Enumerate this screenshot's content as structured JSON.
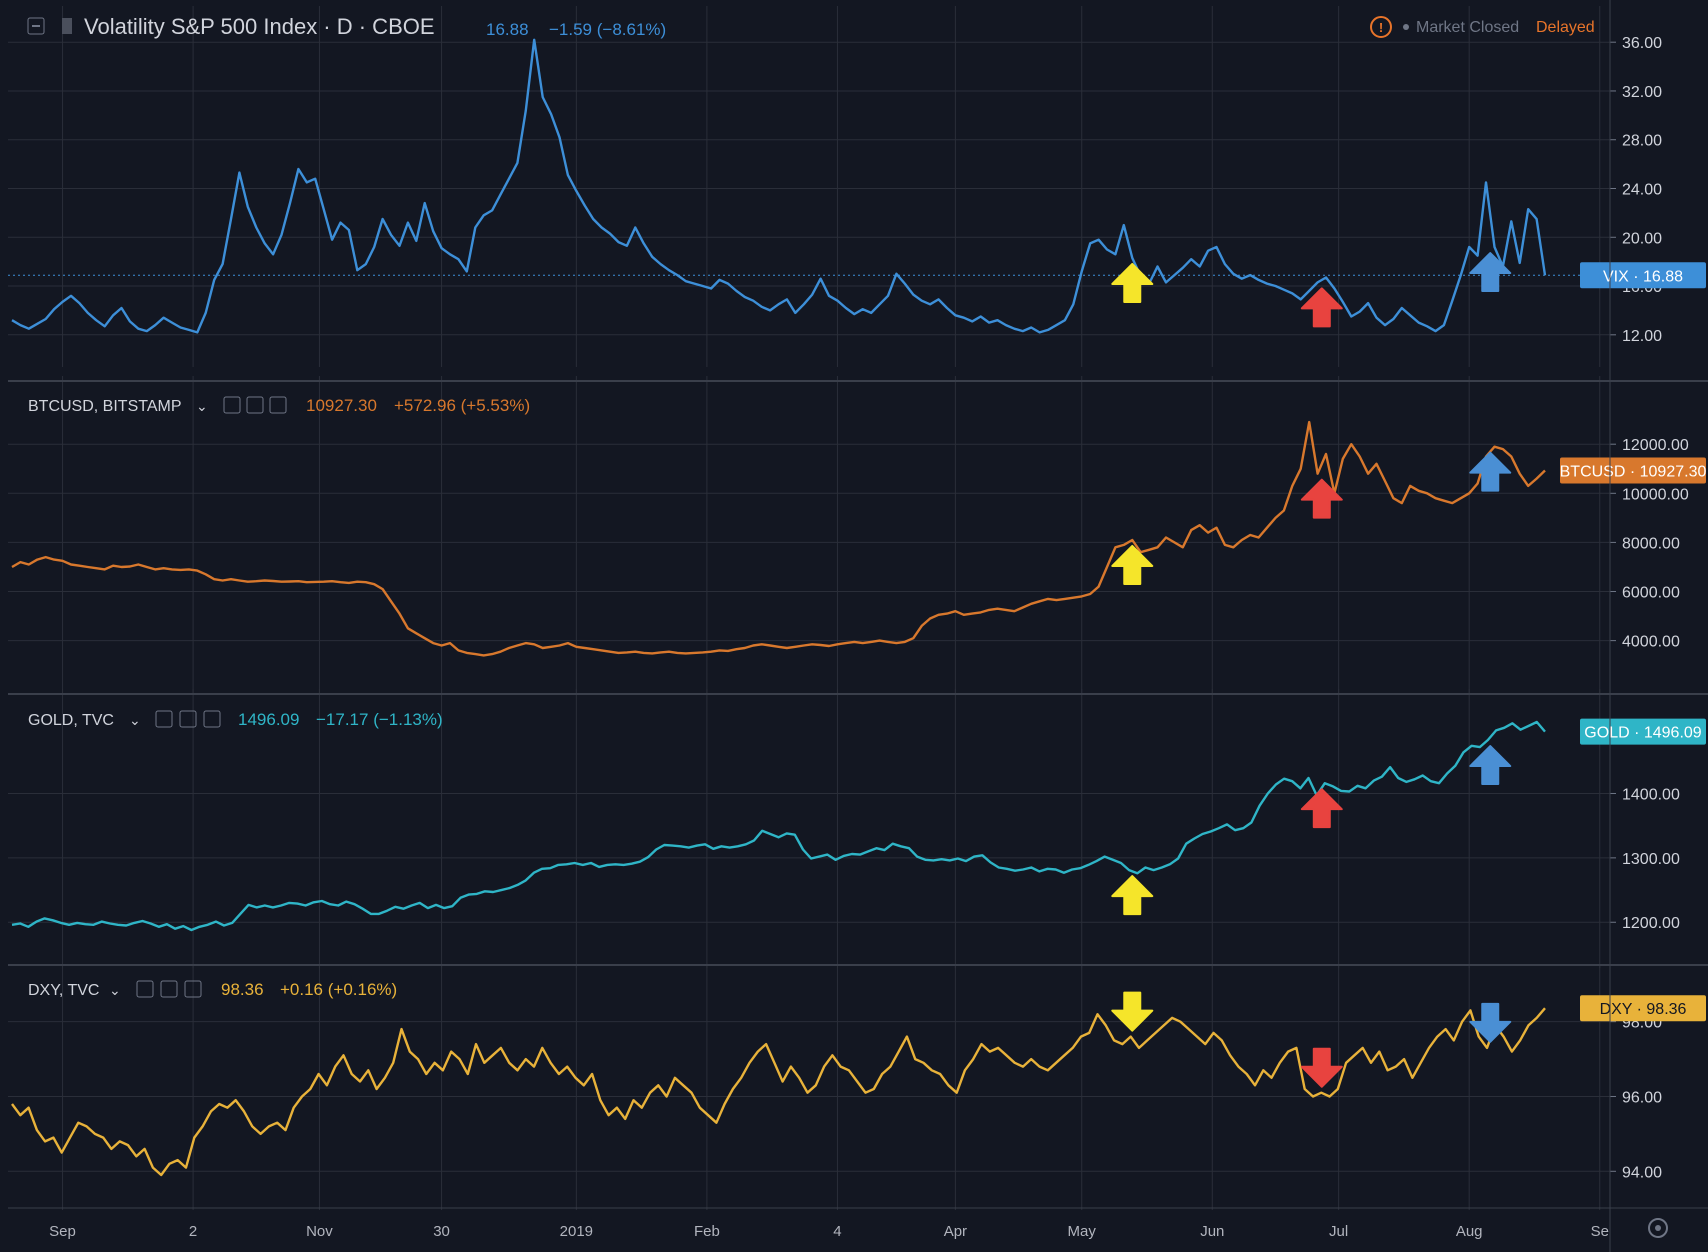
{
  "header": {
    "vix": {
      "symbol": "Volatility S&P 500 Index · D · CBOE",
      "price": "16.88",
      "change": "−1.59 (−8.61%)",
      "market_status": "Market Closed",
      "delayed": "Delayed"
    },
    "btc": {
      "symbol": "BTCUSD, BITSTAMP",
      "price": "10927.30",
      "change": "+572.96 (+5.53%)"
    },
    "gold": {
      "symbol": "GOLD, TVC",
      "price": "1496.09",
      "change": "−17.17 (−1.13%)"
    },
    "dxy": {
      "symbol": "DXY, TVC",
      "price": "98.36",
      "change": "+0.16 (+0.16%)"
    }
  },
  "colors": {
    "background": "#131722",
    "grid": "#2a2e39",
    "vix": "#3d8fd8",
    "btc": "#d8782d",
    "gold": "#2fb5c7",
    "dxy": "#e8b23a",
    "arrow_yellow": "#f5e52a",
    "arrow_red": "#e8433f",
    "arrow_blue": "#4a8fd4",
    "market_status": "#e8742a"
  },
  "chart_data": [
    {
      "type": "line",
      "title": "Volatility S&P 500 Index · D · CBOE",
      "series": [
        {
          "name": "VIX",
          "last": 16.88,
          "values": [
            13.2,
            12.8,
            12.5,
            12.9,
            13.3,
            14.1,
            14.7,
            15.2,
            14.6,
            13.8,
            13.2,
            12.7,
            13.6,
            14.2,
            13.1,
            12.5,
            12.3,
            12.8,
            13.4,
            13.0,
            12.6,
            12.4,
            12.2,
            13.8,
            16.5,
            17.8,
            21.5,
            25.3,
            22.5,
            20.8,
            19.5,
            18.6,
            20.2,
            22.8,
            25.6,
            24.5,
            24.8,
            22.3,
            19.8,
            21.2,
            20.6,
            17.3,
            17.8,
            19.2,
            21.5,
            20.2,
            19.3,
            21.2,
            19.7,
            22.8,
            20.5,
            19.1,
            18.6,
            18.2,
            17.2,
            20.8,
            21.8,
            22.2,
            23.5,
            24.8,
            26.1,
            30.4,
            36.2,
            31.5,
            30.1,
            28.2,
            25.1,
            23.8,
            22.6,
            21.5,
            20.8,
            20.3,
            19.6,
            19.3,
            20.8,
            19.5,
            18.4,
            17.8,
            17.3,
            16.9,
            16.4,
            16.2,
            16.0,
            15.8,
            16.5,
            16.2,
            15.6,
            15.1,
            14.8,
            14.3,
            14.0,
            14.5,
            14.9,
            13.8,
            14.5,
            15.3,
            16.6,
            15.2,
            14.8,
            14.2,
            13.7,
            14.1,
            13.8,
            14.5,
            15.2,
            17.0,
            16.2,
            15.3,
            14.8,
            14.5,
            14.9,
            14.2,
            13.6,
            13.4,
            13.1,
            13.5,
            13.0,
            13.2,
            12.8,
            12.5,
            12.3,
            12.6,
            12.2,
            12.4,
            12.8,
            13.2,
            14.5,
            17.2,
            19.5,
            19.8,
            19.0,
            18.6,
            21.0,
            18.3,
            16.8,
            16.2,
            17.6,
            16.3,
            16.9,
            17.5,
            18.2,
            17.6,
            18.9,
            19.2,
            17.8,
            17.0,
            16.6,
            16.9,
            16.5,
            16.2,
            16.0,
            15.7,
            15.4,
            14.9,
            15.6,
            16.3,
            16.7,
            15.8,
            14.7,
            13.5,
            13.9,
            14.6,
            13.4,
            12.8,
            13.3,
            14.2,
            13.6,
            13.0,
            12.7,
            12.3,
            12.8,
            14.8,
            16.9,
            19.2,
            18.5,
            24.5,
            19.2,
            17.6,
            21.3,
            17.9,
            22.3,
            21.5,
            16.88
          ]
        }
      ],
      "ylim": [
        11,
        37
      ],
      "y_ticks": [
        "36.00",
        "32.00",
        "28.00",
        "24.00",
        "20.00",
        "16.00",
        "12.00"
      ],
      "price_line": 16.88,
      "price_label": "VIX · 16.88",
      "annotations": [
        {
          "type": "arrow",
          "direction": "up",
          "color": "yellow",
          "date": "2019-05-13"
        },
        {
          "type": "arrow",
          "direction": "up",
          "color": "red",
          "date": "2019-06-27"
        },
        {
          "type": "arrow",
          "direction": "up",
          "color": "blue",
          "date": "2019-08-06"
        }
      ]
    },
    {
      "type": "line",
      "title": "BTCUSD, BITSTAMP",
      "series": [
        {
          "name": "BTCUSD",
          "last": 10927.3,
          "values": [
            7000,
            7200,
            7100,
            7300,
            7400,
            7300,
            7250,
            7100,
            7050,
            7000,
            6950,
            6900,
            7050,
            7000,
            7020,
            7100,
            7000,
            6900,
            6950,
            6900,
            6880,
            6900,
            6850,
            6700,
            6500,
            6450,
            6500,
            6450,
            6400,
            6420,
            6450,
            6430,
            6400,
            6410,
            6420,
            6380,
            6390,
            6400,
            6420,
            6380,
            6350,
            6400,
            6380,
            6300,
            6100,
            5600,
            5100,
            4500,
            4300,
            4100,
            3900,
            3800,
            3900,
            3600,
            3500,
            3450,
            3400,
            3450,
            3550,
            3700,
            3800,
            3900,
            3850,
            3700,
            3750,
            3800,
            3900,
            3750,
            3700,
            3650,
            3600,
            3550,
            3500,
            3520,
            3550,
            3500,
            3480,
            3520,
            3550,
            3500,
            3480,
            3500,
            3520,
            3550,
            3600,
            3580,
            3650,
            3700,
            3800,
            3850,
            3800,
            3750,
            3700,
            3750,
            3800,
            3850,
            3820,
            3780,
            3850,
            3900,
            3950,
            3900,
            3950,
            4000,
            3950,
            3900,
            3950,
            4100,
            4600,
            4900,
            5050,
            5100,
            5200,
            5050,
            5100,
            5150,
            5250,
            5300,
            5250,
            5200,
            5350,
            5500,
            5600,
            5700,
            5650,
            5700,
            5750,
            5800,
            5900,
            6200,
            7000,
            7800,
            7900,
            8100,
            7600,
            7700,
            7800,
            8200,
            8000,
            7800,
            8500,
            8700,
            8400,
            8600,
            7900,
            7800,
            8100,
            8300,
            8200,
            8600,
            9000,
            9300,
            10300,
            11000,
            12900,
            10800,
            11600,
            10000,
            11400,
            12000,
            11500,
            10800,
            11200,
            10500,
            9800,
            9600,
            10300,
            10100,
            10000,
            9800,
            9700,
            9600,
            9800,
            10000,
            10400,
            11500,
            11900,
            11800,
            11500,
            10800,
            10300,
            10600,
            10927.3
          ]
        }
      ],
      "ylim": [
        2600,
        13800
      ],
      "y_ticks": [
        "12000.00",
        "10000.00",
        "8000.00",
        "6000.00",
        "4000.00"
      ],
      "price_label": "BTCUSD · 10927.30",
      "annotations": [
        {
          "type": "arrow",
          "direction": "up",
          "color": "yellow",
          "date": "2019-05-13"
        },
        {
          "type": "arrow",
          "direction": "up",
          "color": "red",
          "date": "2019-06-27"
        },
        {
          "type": "arrow",
          "direction": "up",
          "color": "blue",
          "date": "2019-08-06"
        }
      ]
    },
    {
      "type": "line",
      "title": "GOLD, TVC",
      "series": [
        {
          "name": "GOLD",
          "last": 1496.09,
          "values": [
            1196,
            1198,
            1193,
            1201,
            1206,
            1203,
            1199,
            1196,
            1199,
            1197,
            1196,
            1201,
            1198,
            1196,
            1195,
            1199,
            1202,
            1198,
            1193,
            1197,
            1190,
            1194,
            1188,
            1193,
            1196,
            1201,
            1195,
            1199,
            1213,
            1227,
            1223,
            1226,
            1223,
            1226,
            1230,
            1229,
            1226,
            1231,
            1233,
            1228,
            1226,
            1232,
            1228,
            1221,
            1213,
            1213,
            1218,
            1224,
            1221,
            1226,
            1230,
            1222,
            1227,
            1222,
            1225,
            1238,
            1243,
            1244,
            1248,
            1247,
            1250,
            1253,
            1258,
            1265,
            1277,
            1283,
            1284,
            1289,
            1290,
            1292,
            1289,
            1292,
            1286,
            1289,
            1290,
            1289,
            1291,
            1294,
            1301,
            1313,
            1320,
            1319,
            1318,
            1316,
            1319,
            1321,
            1314,
            1318,
            1316,
            1318,
            1321,
            1327,
            1342,
            1337,
            1332,
            1338,
            1336,
            1313,
            1299,
            1302,
            1305,
            1297,
            1303,
            1306,
            1305,
            1310,
            1315,
            1312,
            1322,
            1318,
            1315,
            1302,
            1297,
            1296,
            1298,
            1296,
            1299,
            1295,
            1302,
            1304,
            1293,
            1285,
            1283,
            1280,
            1282,
            1285,
            1279,
            1283,
            1282,
            1277,
            1282,
            1284,
            1289,
            1295,
            1302,
            1297,
            1292,
            1281,
            1276,
            1285,
            1281,
            1285,
            1290,
            1299,
            1322,
            1330,
            1337,
            1341,
            1346,
            1352,
            1343,
            1346,
            1355,
            1381,
            1400,
            1414,
            1423,
            1419,
            1408,
            1424,
            1397,
            1416,
            1411,
            1404,
            1403,
            1412,
            1408,
            1420,
            1426,
            1441,
            1424,
            1418,
            1422,
            1428,
            1419,
            1416,
            1431,
            1443,
            1464,
            1474,
            1472,
            1483,
            1498,
            1502,
            1509,
            1499,
            1505,
            1511,
            1496.09
          ]
        }
      ],
      "ylim": [
        1160,
        1525
      ],
      "y_ticks": [
        "1400.00",
        "1300.00",
        "1200.00"
      ],
      "price_label": "GOLD · 1496.09",
      "annotations": [
        {
          "type": "arrow",
          "direction": "up",
          "color": "yellow",
          "date": "2019-05-13"
        },
        {
          "type": "arrow",
          "direction": "up",
          "color": "red",
          "date": "2019-06-27"
        },
        {
          "type": "arrow",
          "direction": "up",
          "color": "blue",
          "date": "2019-08-06"
        }
      ]
    },
    {
      "type": "line",
      "title": "DXY, TVC",
      "series": [
        {
          "name": "DXY",
          "last": 98.36,
          "values": [
            95.8,
            95.5,
            95.7,
            95.1,
            94.8,
            94.9,
            94.5,
            94.9,
            95.3,
            95.2,
            95.0,
            94.9,
            94.6,
            94.8,
            94.7,
            94.4,
            94.6,
            94.1,
            93.9,
            94.2,
            94.3,
            94.1,
            94.9,
            95.2,
            95.6,
            95.8,
            95.7,
            95.9,
            95.6,
            95.2,
            95.0,
            95.2,
            95.3,
            95.1,
            95.7,
            96.0,
            96.2,
            96.6,
            96.3,
            96.8,
            97.1,
            96.6,
            96.4,
            96.7,
            96.2,
            96.5,
            96.9,
            97.8,
            97.2,
            97.0,
            96.6,
            96.9,
            96.7,
            97.2,
            97.0,
            96.6,
            97.4,
            96.9,
            97.1,
            97.3,
            96.9,
            96.7,
            97.0,
            96.8,
            97.3,
            96.9,
            96.6,
            96.8,
            96.5,
            96.3,
            96.6,
            95.9,
            95.5,
            95.7,
            95.4,
            95.9,
            95.7,
            96.1,
            96.3,
            96.0,
            96.5,
            96.3,
            96.1,
            95.7,
            95.5,
            95.3,
            95.8,
            96.2,
            96.5,
            96.9,
            97.2,
            97.4,
            96.9,
            96.4,
            96.8,
            96.5,
            96.1,
            96.3,
            96.8,
            97.1,
            96.8,
            96.7,
            96.4,
            96.1,
            96.2,
            96.6,
            96.8,
            97.2,
            97.6,
            97.0,
            96.9,
            96.7,
            96.6,
            96.3,
            96.1,
            96.7,
            97.0,
            97.4,
            97.2,
            97.3,
            97.1,
            96.9,
            96.8,
            97.0,
            96.8,
            96.7,
            96.9,
            97.1,
            97.3,
            97.6,
            97.7,
            98.2,
            97.9,
            97.5,
            97.4,
            97.6,
            97.3,
            97.5,
            97.7,
            97.9,
            98.1,
            98.0,
            97.8,
            97.6,
            97.4,
            97.7,
            97.5,
            97.1,
            96.8,
            96.6,
            96.3,
            96.7,
            96.5,
            96.9,
            97.2,
            97.3,
            96.2,
            96.0,
            96.1,
            96.0,
            96.2,
            96.9,
            97.1,
            97.3,
            96.9,
            97.2,
            96.7,
            96.8,
            97.0,
            96.5,
            96.9,
            97.3,
            97.6,
            97.8,
            97.5,
            98.0,
            98.3,
            97.6,
            97.3,
            97.9,
            97.6,
            97.2,
            97.5,
            97.9,
            98.1,
            98.36
          ]
        }
      ],
      "ylim": [
        93.5,
        98.9
      ],
      "y_ticks": [
        "98.00",
        "96.00",
        "94.00"
      ],
      "price_label": "DXY · 98.36",
      "annotations": [
        {
          "type": "arrow",
          "direction": "down",
          "color": "yellow",
          "date": "2019-05-13"
        },
        {
          "type": "arrow",
          "direction": "down",
          "color": "red",
          "date": "2019-06-27"
        },
        {
          "type": "arrow",
          "direction": "down",
          "color": "blue",
          "date": "2019-08-06"
        }
      ]
    }
  ],
  "x_axis": {
    "range": [
      "2018-08-20",
      "2019-08-19"
    ],
    "labels": [
      "Sep",
      "2",
      "Nov",
      "30",
      "2019",
      "Feb",
      "4",
      "Apr",
      "May",
      "Jun",
      "Jul",
      "Aug",
      "Se"
    ],
    "label_dates": [
      "2018-09-01",
      "2018-10-02",
      "2018-11-01",
      "2018-11-30",
      "2019-01-01",
      "2019-02-01",
      "2019-03-04",
      "2019-04-01",
      "2019-05-01",
      "2019-06-01",
      "2019-07-01",
      "2019-08-01",
      "2019-09-01"
    ]
  },
  "settings_icon": "gear-icon"
}
